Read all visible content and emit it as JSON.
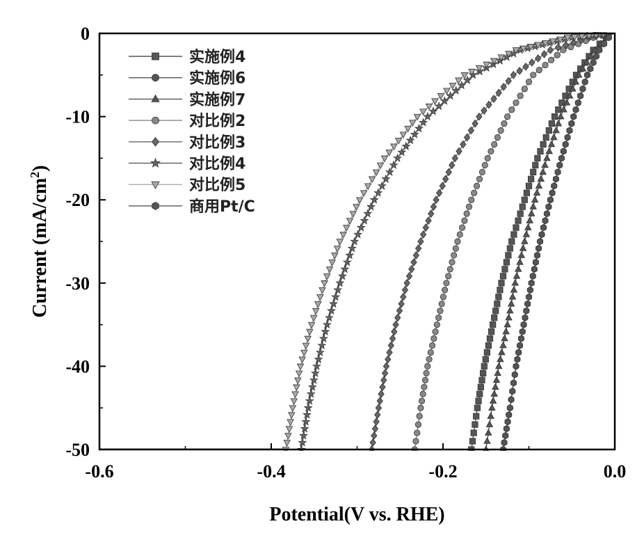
{
  "chart_data": {
    "type": "line",
    "xlabel": "Potential(V vs. RHE)",
    "ylabel_main": "Current (mA/cm",
    "ylabel_sup": "2",
    "ylabel_close": ")",
    "xlim": [
      -0.6,
      0.0
    ],
    "ylim": [
      -50,
      0
    ],
    "xticks": [
      -0.6,
      -0.4,
      -0.2,
      0.0
    ],
    "xtick_labels": [
      "-0.6",
      "-0.4",
      "-0.2",
      "0.0"
    ],
    "yticks": [
      0,
      -10,
      -20,
      -30,
      -40,
      -50
    ],
    "ytick_labels": [
      "0",
      "-10",
      "-20",
      "-30",
      "-40",
      "-50"
    ],
    "grid": false,
    "legend_position": "top-left",
    "series": [
      {
        "name": "实施例4",
        "marker": "square",
        "color": "#555555",
        "points": [
          [
            -0.167,
            -50
          ],
          [
            -0.16,
            -45
          ],
          [
            -0.152,
            -40
          ],
          [
            -0.142,
            -35
          ],
          [
            -0.132,
            -30
          ],
          [
            -0.12,
            -25
          ],
          [
            -0.105,
            -20
          ],
          [
            -0.09,
            -15
          ],
          [
            -0.07,
            -10
          ],
          [
            -0.045,
            -5
          ],
          [
            -0.025,
            -2
          ],
          [
            -0.01,
            -0.5
          ],
          [
            -0.003,
            0
          ]
        ]
      },
      {
        "name": "实施例6",
        "marker": "circle",
        "color": "#555555",
        "points": [
          [
            -0.13,
            -50
          ],
          [
            -0.122,
            -45
          ],
          [
            -0.115,
            -40
          ],
          [
            -0.106,
            -35
          ],
          [
            -0.097,
            -30
          ],
          [
            -0.087,
            -25
          ],
          [
            -0.075,
            -20
          ],
          [
            -0.062,
            -15
          ],
          [
            -0.048,
            -10
          ],
          [
            -0.032,
            -5
          ],
          [
            -0.018,
            -2
          ],
          [
            -0.007,
            -0.5
          ],
          [
            -0.002,
            0
          ]
        ]
      },
      {
        "name": "实施例7",
        "marker": "triangle",
        "color": "#555555",
        "points": [
          [
            -0.15,
            -50
          ],
          [
            -0.143,
            -45
          ],
          [
            -0.135,
            -40
          ],
          [
            -0.125,
            -35
          ],
          [
            -0.116,
            -30
          ],
          [
            -0.105,
            -25
          ],
          [
            -0.093,
            -20
          ],
          [
            -0.079,
            -15
          ],
          [
            -0.063,
            -10
          ],
          [
            -0.042,
            -5
          ],
          [
            -0.023,
            -2
          ],
          [
            -0.009,
            -0.5
          ],
          [
            -0.003,
            0
          ]
        ]
      },
      {
        "name": "对比例2",
        "marker": "circle",
        "color": "#888888",
        "points": [
          [
            -0.233,
            -50
          ],
          [
            -0.226,
            -45
          ],
          [
            -0.218,
            -40
          ],
          [
            -0.207,
            -35
          ],
          [
            -0.196,
            -30
          ],
          [
            -0.183,
            -25
          ],
          [
            -0.167,
            -20
          ],
          [
            -0.148,
            -15
          ],
          [
            -0.125,
            -10
          ],
          [
            -0.095,
            -5
          ],
          [
            -0.06,
            -2
          ],
          [
            -0.025,
            -0.5
          ],
          [
            -0.005,
            0
          ]
        ]
      },
      {
        "name": "对比例3",
        "marker": "diamond",
        "color": "#666666",
        "points": [
          [
            -0.283,
            -50
          ],
          [
            -0.275,
            -45
          ],
          [
            -0.266,
            -40
          ],
          [
            -0.255,
            -35
          ],
          [
            -0.242,
            -30
          ],
          [
            -0.226,
            -25
          ],
          [
            -0.208,
            -20
          ],
          [
            -0.186,
            -15
          ],
          [
            -0.158,
            -10
          ],
          [
            -0.118,
            -5
          ],
          [
            -0.075,
            -2
          ],
          [
            -0.03,
            -0.5
          ],
          [
            -0.005,
            0
          ]
        ]
      },
      {
        "name": "对比例4",
        "marker": "star",
        "color": "#666666",
        "points": [
          [
            -0.365,
            -50
          ],
          [
            -0.357,
            -45
          ],
          [
            -0.347,
            -40
          ],
          [
            -0.335,
            -35
          ],
          [
            -0.32,
            -30
          ],
          [
            -0.303,
            -25
          ],
          [
            -0.28,
            -20
          ],
          [
            -0.253,
            -15
          ],
          [
            -0.218,
            -10
          ],
          [
            -0.165,
            -5
          ],
          [
            -0.11,
            -2
          ],
          [
            -0.05,
            -0.5
          ],
          [
            -0.005,
            0
          ]
        ]
      },
      {
        "name": "对比例5",
        "marker": "triangle-down",
        "color": "#aaaaaa",
        "points": [
          [
            -0.383,
            -50
          ],
          [
            -0.375,
            -45
          ],
          [
            -0.366,
            -40
          ],
          [
            -0.353,
            -35
          ],
          [
            -0.338,
            -30
          ],
          [
            -0.32,
            -25
          ],
          [
            -0.297,
            -20
          ],
          [
            -0.268,
            -15
          ],
          [
            -0.23,
            -10
          ],
          [
            -0.175,
            -5
          ],
          [
            -0.115,
            -2
          ],
          [
            -0.055,
            -0.5
          ],
          [
            -0.005,
            0
          ]
        ]
      },
      {
        "name": "商用Pt/C",
        "marker": "hexagon",
        "color": "#555555",
        "points": [
          [
            -0.13,
            -50
          ],
          [
            -0.122,
            -45
          ],
          [
            -0.115,
            -40
          ],
          [
            -0.106,
            -35
          ],
          [
            -0.097,
            -30
          ],
          [
            -0.087,
            -25
          ],
          [
            -0.075,
            -20
          ],
          [
            -0.062,
            -15
          ],
          [
            -0.048,
            -10
          ],
          [
            -0.032,
            -5
          ],
          [
            -0.018,
            -2
          ],
          [
            -0.007,
            -0.5
          ],
          [
            -0.002,
            0
          ]
        ]
      }
    ]
  }
}
